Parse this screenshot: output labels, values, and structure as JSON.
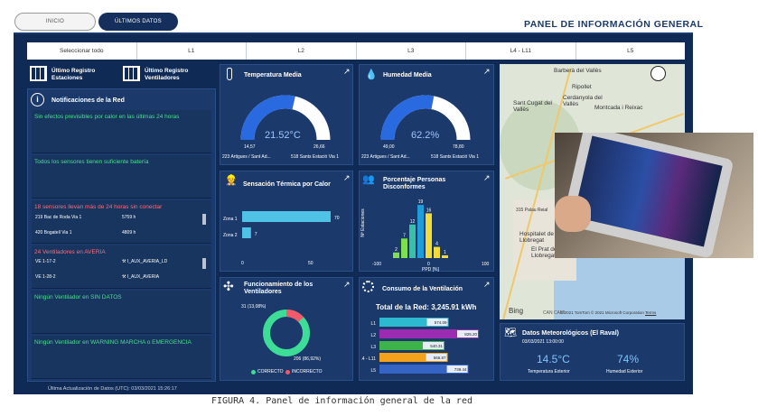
{
  "tabs": [
    {
      "label": "INICIO"
    },
    {
      "label": "ÚLTIMOS DATOS"
    }
  ],
  "header": {
    "title": "PANEL DE INFORMACIÓN GENERAL"
  },
  "filters": [
    "Seleccionar todo",
    "L1",
    "L2",
    "L3",
    "L4 - L11",
    "L5"
  ],
  "left": {
    "registro_estaciones": "Último Registro Estaciones",
    "registro_ventiladores": "Último Registro Ventiladores",
    "notif_title": "Notificaciones de la Red",
    "n1": "Sin efectos previsibles por calor en las últimas 24 horas",
    "n2": "Todos los sensores tienen suficiente batería",
    "n3": "18 sensores llevan más de 24 horas sin conectar",
    "n3_rows": [
      [
        "219 Bac de Roda Via 1",
        "5759 h"
      ],
      [
        "420 Bogatell Via 1",
        "4809 h"
      ]
    ],
    "n4": "24 Ventiladores en AVERIA",
    "n4_rows": [
      [
        "VE 1-17-2",
        "⚒ I_AUX_AVERIA_LD"
      ],
      [
        "VE 1-28-2",
        "⚒ I_AUX_AVERIA"
      ]
    ],
    "n5": "Ningún Ventilador en SIN DATOS",
    "n6": "Ningún Ventilador en WARNING MARCHA o EMERGENCIA"
  },
  "temp": {
    "title": "Temperatura Media",
    "value": "21.52°C",
    "min": "14,57",
    "max": "26,66",
    "min_st": "223 Artigues / Sant Ad...",
    "max_st": "518 Sants Estació Via 1",
    "fill": 0.57
  },
  "hum": {
    "title": "Humedad Media",
    "value": "62.2%",
    "min": "49,00",
    "max": "78,80",
    "min_st": "223 Artigues / Sant Ad...",
    "max_st": "518 Sants Estació Via 1",
    "fill": 0.56
  },
  "sensacion": {
    "title": "Sensación Térmica por Calor",
    "z1": "Zona 1",
    "z2": "Zona 2",
    "v1": "70",
    "v2": "7",
    "t0": "0",
    "t50": "50"
  },
  "ppd": {
    "title": "Porcentaje Personas Disconformes",
    "ylabel": "Nº Estaciones",
    "xlabel": "PPD [%]",
    "tmin": "-100",
    "t0": "0",
    "t100": "100"
  },
  "fan": {
    "title": "Funcionamiento de los Ventiladores",
    "inc": "31 (13,08%)",
    "cor": "206 (86,92%)",
    "leg_c": "CORRECTO",
    "leg_i": "INCORRECTO",
    "correct_frac": 0.8692
  },
  "consumo": {
    "title": "Consumo de la Ventilación",
    "total": "Total de la Red: 3,245.91 kWh"
  },
  "meteo": {
    "title": "Datos Meteorológicos (El Raval)",
    "date": "03/03/2021 13:00:00",
    "temp": "14.5°C",
    "temp_l": "Temperatura Exterior",
    "hum": "74%",
    "hum_l": "Humedad Exterior"
  },
  "map": {
    "labels": [
      "Barberà del Vallès",
      "Ripollet",
      "Cerdanyola del Vallès",
      "Montcada i Reixac",
      "Sant Cugat del Vallès",
      "315 Palau Reial",
      "Hospitalet de Llobregat",
      "El Prat de Llobregat",
      "CAN CAMI"
    ],
    "copyright": "© 2021 TomTom © 2021 Microsoft Corporation",
    "terms": "Terms",
    "bing": "Bing"
  },
  "footer": "Última Actualización de Datos (UTC): 03/03/2021 15:26:17",
  "caption": "FIGURA 4. Panel de información general de la red",
  "chart_data": [
    {
      "type": "bar",
      "title": "Sensación Térmica por Calor",
      "categories": [
        "Zona 1",
        "Zona 2"
      ],
      "values": [
        70,
        7
      ],
      "xlim": [
        0,
        100
      ]
    },
    {
      "type": "bar",
      "title": "Porcentaje Personas Disconformes",
      "xlabel": "PPD [%]",
      "ylabel": "Nº Estaciones",
      "categories": [
        "-40",
        "-30",
        "-20",
        "-10",
        "0",
        "10",
        "20"
      ],
      "values": [
        2,
        7,
        12,
        19,
        16,
        4,
        1
      ],
      "colors": [
        "#7ee04d",
        "#7ee04d",
        "#37c2a8",
        "#1f9ddb",
        "#f2dc3a",
        "#f2dc3a",
        "#f2dc3a"
      ]
    },
    {
      "type": "pie",
      "title": "Funcionamiento de los Ventiladores",
      "labels": [
        "CORRECTO",
        "INCORRECTO"
      ],
      "values": [
        206,
        31
      ]
    },
    {
      "type": "bar",
      "title": "Consumo de la Ventilación",
      "categories": [
        "L1",
        "L2",
        "L3",
        "L4 - L11",
        "L5"
      ],
      "values": [
        574.09,
        825.2,
        540.31,
        566.87,
        739.44
      ],
      "colors": [
        "#2dbad0",
        "#9b2bb0",
        "#3db34a",
        "#f4a21c",
        "#3464c4"
      ]
    }
  ]
}
